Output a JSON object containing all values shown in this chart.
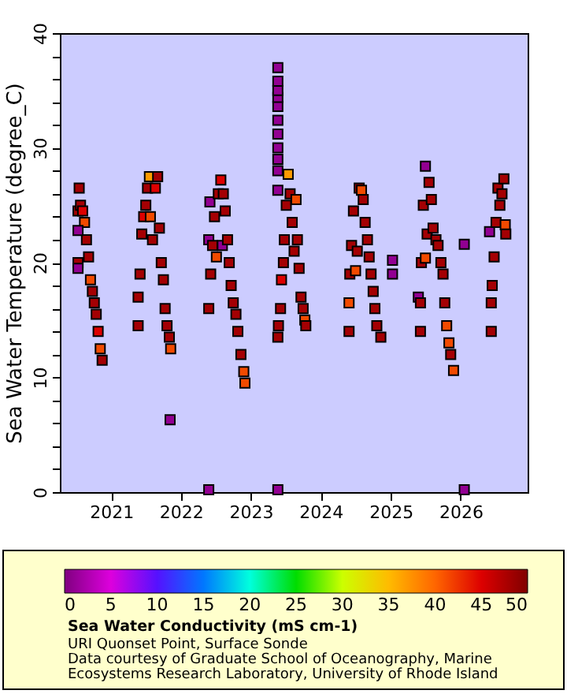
{
  "chart_data": {
    "type": "scatter",
    "ylabel": "Sea Water Temperature (degree_C)",
    "clabel": "Sea Water Conductivity (mS cm-1)",
    "annotations": [
      "URI Quonset Point, Surface Sonde",
      "Data courtesy of Graduate School of Oceanography, Marine",
      "Ecosystems Research Laboratory, University of Rhode Island"
    ],
    "xlim": [
      "2020-04-08",
      "2026-12-17"
    ],
    "xticks": [
      "2021",
      "2022",
      "2023",
      "2024",
      "2025",
      "2026"
    ],
    "ylim": [
      0,
      40
    ],
    "yticks": [
      0,
      {
        "value": 2,
        "label": null
      },
      {
        "value": 4,
        "label": null
      },
      {
        "value": 6,
        "label": null
      },
      {
        "value": 8,
        "label": null
      },
      10,
      {
        "value": 12,
        "label": null
      },
      {
        "value": 14,
        "label": null
      },
      {
        "value": 16,
        "label": null
      },
      {
        "value": 18,
        "label": null
      },
      20,
      {
        "value": 22,
        "label": null
      },
      {
        "value": 24,
        "label": null
      },
      {
        "value": 26,
        "label": null
      },
      {
        "value": 28,
        "label": null
      },
      30,
      {
        "value": 32,
        "label": null
      },
      {
        "value": 34,
        "label": null
      },
      {
        "value": 36,
        "label": null
      },
      {
        "value": 38,
        "label": null
      },
      40
    ],
    "clim": [
      0,
      50
    ],
    "cticks": [
      0,
      5,
      10,
      15,
      20,
      25,
      30,
      35,
      40,
      45,
      50
    ],
    "grid": false,
    "marker": "square",
    "series": [
      {
        "x": [
          "2020-07-12",
          "2020-07-12",
          "2020-07-18",
          "2020-07-25",
          "2020-08-05",
          "2020-08-15",
          "2020-08-25",
          "2020-09-05",
          "2020-09-15",
          "2020-09-25",
          "2020-10-05",
          "2020-10-15",
          "2020-10-25",
          "2020-11-05",
          "2020-11-15",
          "2020-07-12",
          "2020-07-12",
          "2021-05-22",
          "2021-05-22",
          "2021-06-01",
          "2021-06-10",
          "2021-06-20",
          "2021-07-01",
          "2021-07-10",
          "2021-07-20",
          "2021-07-25",
          "2021-08-05",
          "2021-08-20",
          "2021-09-01",
          "2021-09-10",
          "2021-09-20",
          "2021-10-01",
          "2021-10-10",
          "2021-10-20",
          "2021-11-01",
          "2021-11-08",
          "2021-11-05",
          "2022-05-26",
          "2022-05-26",
          "2022-06-01",
          "2022-06-05",
          "2022-06-15",
          "2022-06-25",
          "2022-07-05",
          "2022-07-15",
          "2022-07-28",
          "2022-08-05",
          "2022-08-10",
          "2022-08-20",
          "2022-09-01",
          "2022-09-10",
          "2022-09-20",
          "2022-10-01",
          "2022-10-15",
          "2022-10-25",
          "2022-11-10",
          "2022-11-25",
          "2022-12-01",
          "2022-05-26",
          "2023-05-22",
          "2023-05-25",
          "2023-06-05",
          "2023-06-10",
          "2023-06-20",
          "2023-06-25",
          "2023-07-05",
          "2023-07-15",
          "2023-07-25",
          "2023-08-05",
          "2023-08-15",
          "2023-08-25",
          "2023-09-01",
          "2023-09-10",
          "2023-09-20",
          "2023-10-01",
          "2023-10-10",
          "2023-10-15",
          "2023-05-22",
          "2023-05-22",
          "2023-05-22",
          "2023-05-22",
          "2023-05-22",
          "2023-05-22",
          "2023-05-22",
          "2023-05-22",
          "2023-05-22",
          "2023-05-22",
          "2023-05-22",
          "2023-05-22",
          "2024-05-28",
          "2024-05-28",
          "2024-06-01",
          "2024-06-10",
          "2024-06-20",
          "2024-07-01",
          "2024-07-10",
          "2024-07-20",
          "2024-08-01",
          "2024-08-10",
          "2024-08-20",
          "2024-09-01",
          "2024-09-10",
          "2024-09-20",
          "2024-10-01",
          "2024-10-10",
          "2024-10-20",
          "2024-11-10",
          "2025-01-10",
          "2025-01-10",
          "2025-05-25",
          "2025-06-05",
          "2025-06-05",
          "2025-06-10",
          "2025-06-20",
          "2025-07-01",
          "2025-07-01",
          "2025-07-10",
          "2025-07-20",
          "2025-08-01",
          "2025-08-10",
          "2025-08-25",
          "2025-09-05",
          "2025-09-20",
          "2025-10-01",
          "2025-10-10",
          "2025-10-20",
          "2025-11-01",
          "2025-11-10",
          "2025-11-25",
          "2026-01-20",
          "2026-01-20",
          "2026-06-01",
          "2026-06-10",
          "2026-06-10",
          "2026-06-15",
          "2026-06-25",
          "2026-07-05",
          "2026-07-15",
          "2026-07-25",
          "2026-08-05",
          "2026-08-15",
          "2026-08-22",
          "2026-08-25"
        ],
        "values": [
          20.0,
          24.5,
          26.5,
          25.0,
          24.5,
          23.5,
          22.0,
          20.5,
          18.5,
          17.5,
          16.5,
          15.5,
          14.0,
          12.5,
          11.5,
          22.8,
          19.5,
          14.5,
          17.0,
          19.0,
          22.5,
          24.0,
          25.0,
          26.5,
          27.5,
          24.0,
          22.0,
          26.5,
          27.5,
          23.0,
          20.0,
          18.5,
          16.0,
          14.5,
          13.5,
          12.5,
          6.3,
          16.0,
          22.0,
          25.3,
          19.0,
          21.5,
          24.0,
          20.5,
          26.0,
          27.2,
          21.5,
          26.0,
          24.5,
          22.0,
          20.0,
          18.0,
          16.5,
          15.5,
          14.0,
          12.0,
          10.5,
          9.5,
          0.2,
          13.5,
          14.5,
          16.0,
          18.5,
          20.0,
          22.0,
          25.0,
          27.7,
          26.0,
          23.5,
          21.0,
          25.5,
          22.0,
          19.5,
          17.0,
          16.0,
          15.0,
          14.5,
          26.3,
          28.0,
          29.0,
          30.0,
          31.2,
          32.4,
          33.6,
          34.4,
          35.0,
          35.8,
          37.0,
          0.2,
          14.0,
          16.5,
          19.0,
          21.5,
          24.5,
          19.3,
          21.0,
          26.5,
          26.3,
          25.5,
          23.5,
          22.0,
          20.5,
          19.0,
          17.5,
          16.0,
          14.5,
          13.5,
          19.0,
          20.2,
          17.0,
          14.0,
          16.5,
          20.0,
          25.0,
          28.4,
          20.4,
          22.5,
          27.0,
          25.5,
          23.0,
          22.0,
          21.5,
          20.0,
          19.0,
          16.5,
          14.5,
          13.0,
          12.0,
          10.6,
          21.6,
          0.2,
          22.7,
          14.0,
          16.5,
          18.0,
          20.5,
          23.5,
          26.5,
          25.0,
          26.0,
          27.3,
          23.3,
          22.5
        ],
        "cvalues": [
          48,
          48,
          48,
          48,
          45,
          42,
          48,
          48,
          42,
          48,
          48,
          48,
          45,
          42,
          48,
          1,
          1,
          48,
          48,
          48,
          48,
          45,
          48,
          48,
          37,
          42,
          48,
          45,
          48,
          48,
          48,
          48,
          48,
          48,
          48,
          42,
          1,
          48,
          1,
          1,
          48,
          48,
          48,
          42,
          48,
          45,
          1,
          48,
          48,
          48,
          48,
          48,
          48,
          48,
          48,
          48,
          42,
          42,
          1,
          48,
          48,
          48,
          45,
          48,
          48,
          48,
          37,
          48,
          48,
          48,
          42,
          48,
          48,
          48,
          48,
          42,
          48,
          1,
          1,
          1,
          1,
          1,
          1,
          1,
          1,
          1,
          1,
          1,
          1,
          48,
          42,
          48,
          48,
          48,
          42,
          48,
          48,
          42,
          48,
          48,
          48,
          48,
          48,
          48,
          48,
          48,
          48,
          1,
          1,
          1,
          48,
          48,
          48,
          48,
          1,
          42,
          48,
          48,
          48,
          48,
          48,
          48,
          48,
          48,
          48,
          42,
          42,
          48,
          42,
          1,
          1,
          1,
          48,
          48,
          48,
          48,
          48,
          48,
          48,
          48,
          48,
          42,
          48
        ]
      }
    ]
  }
}
